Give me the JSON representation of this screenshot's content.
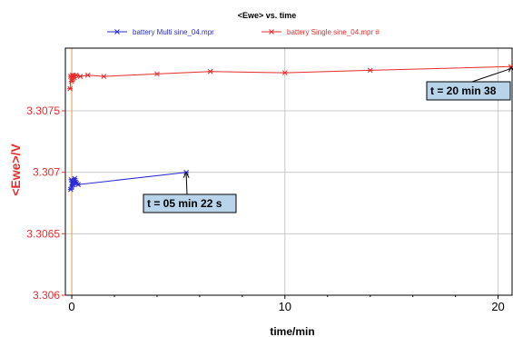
{
  "chart_data": {
    "type": "line",
    "title": "<Ewe> vs. time",
    "xlabel": "time/min",
    "ylabel": "<Ewe>/V",
    "xlim": [
      -0.3,
      20.7
    ],
    "ylim": [
      3.306,
      3.30801
    ],
    "xticks": [
      0,
      10,
      20
    ],
    "xtick_labels": [
      "0",
      "10",
      "20"
    ],
    "yticks": [
      3.306,
      3.3065,
      3.307,
      3.3075
    ],
    "ytick_labels": [
      "3.306",
      "3.3065",
      "3.307",
      "3.3075"
    ],
    "grid": true,
    "legend_position": "top",
    "colors": {
      "series_multi": "#2a2ad6",
      "series_single": "#e82c2c",
      "axis_y": "#e82c2c",
      "grid": "#c8c8c8",
      "annotation_box": "#b8d4ea"
    },
    "series": [
      {
        "name": "battery Multi sine_04.mpr",
        "color": "#2a2ad6",
        "points": [
          [
            -0.05,
            3.30686
          ],
          [
            -0.02,
            3.30694
          ],
          [
            0.0,
            3.30688
          ],
          [
            0.03,
            3.30692
          ],
          [
            0.06,
            3.3069
          ],
          [
            0.1,
            3.30693
          ],
          [
            0.14,
            3.30695
          ],
          [
            0.18,
            3.30692
          ],
          [
            0.22,
            3.30691
          ],
          [
            0.3,
            3.3069
          ],
          [
            5.37,
            3.307
          ]
        ]
      },
      {
        "name": "battery Single sine_04.mpr #",
        "color": "#e82c2c",
        "points": [
          [
            -0.08,
            3.30768
          ],
          [
            -0.05,
            3.30778
          ],
          [
            0.0,
            3.30774
          ],
          [
            0.02,
            3.30779
          ],
          [
            0.05,
            3.30776
          ],
          [
            0.08,
            3.30779
          ],
          [
            0.12,
            3.30777
          ],
          [
            0.2,
            3.30779
          ],
          [
            0.4,
            3.30778
          ],
          [
            0.75,
            3.30779
          ],
          [
            1.5,
            3.30778
          ],
          [
            4.0,
            3.3078
          ],
          [
            6.5,
            3.30782
          ],
          [
            10.0,
            3.30781
          ],
          [
            14.0,
            3.30783
          ],
          [
            20.6,
            3.30786
          ]
        ]
      }
    ],
    "annotations": [
      {
        "text": "t = 05 min 22 s",
        "x": 5.37,
        "y": 3.307,
        "series": "battery Multi sine_04.mpr"
      },
      {
        "text": "t = 20 min 38",
        "x": 20.63,
        "y": 3.30786,
        "series": "battery Single sine_04.mpr #"
      }
    ]
  }
}
